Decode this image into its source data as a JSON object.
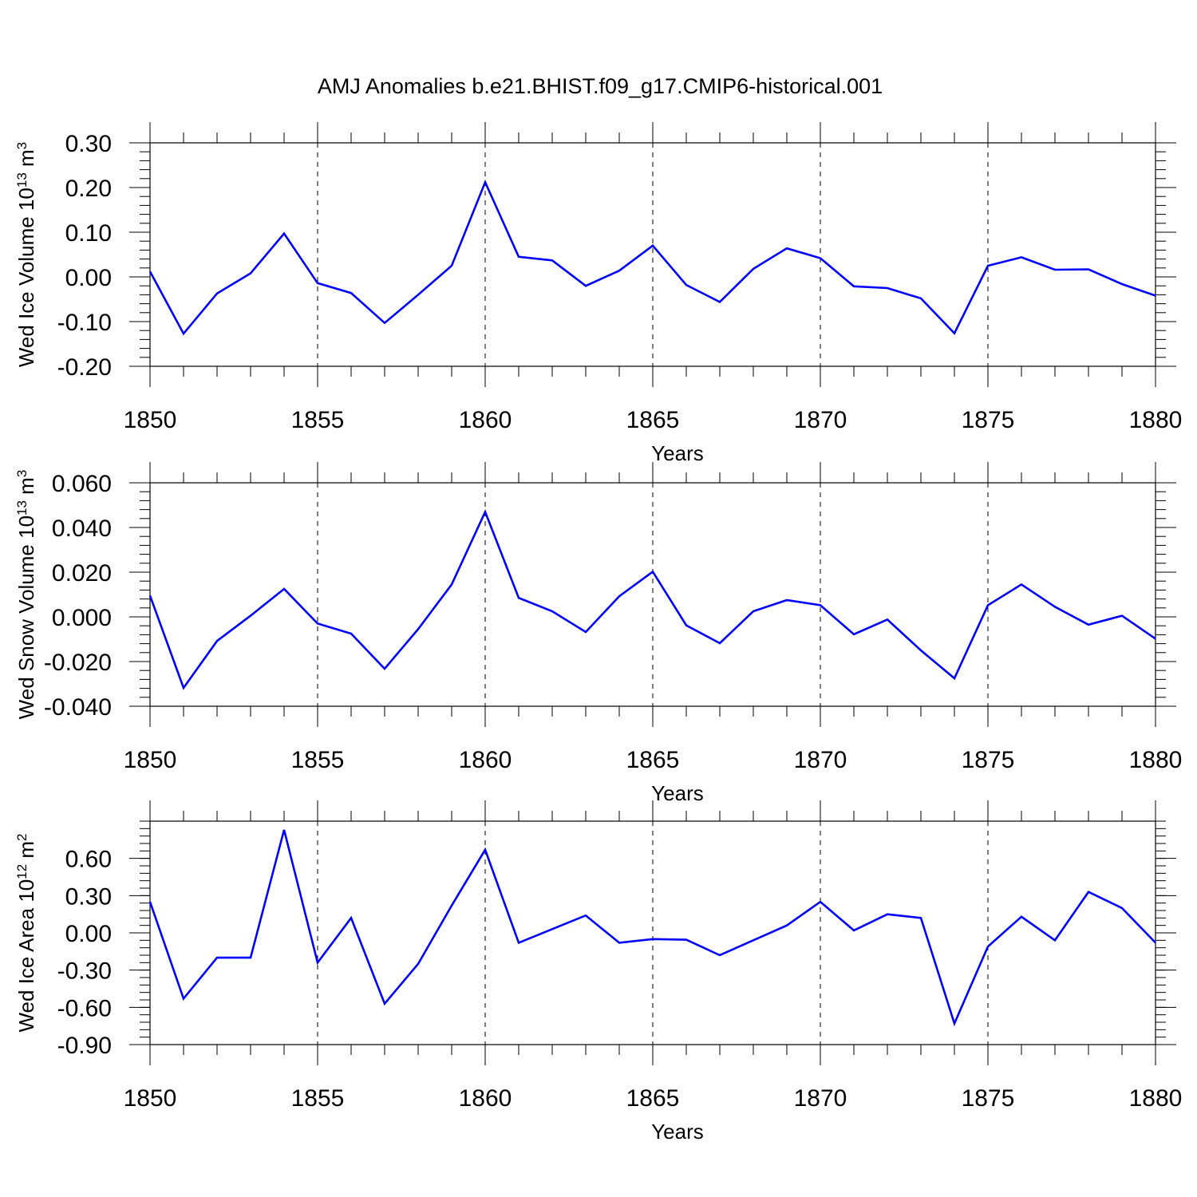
{
  "title": "AMJ Anomalies b.e21.BHIST.f09_g17.CMIP6-historical.001",
  "colors": {
    "series": "#0000ff",
    "axis": "#000000",
    "grid": "#000000"
  },
  "chart_data": [
    {
      "type": "line",
      "xlabel": "Years",
      "ylabel": {
        "text": "Wed Ice Volume 10",
        "exp": "13",
        "unit": " m",
        "unit_exp": "3"
      },
      "xlim": [
        1850,
        1880
      ],
      "ylim": [
        -0.2,
        0.3
      ],
      "x_ticks": [
        "1850",
        "1855",
        "1860",
        "1865",
        "1870",
        "1875",
        "1880"
      ],
      "y_ticks": [
        {
          "v": 0.3,
          "label": "0.30"
        },
        {
          "v": 0.2,
          "label": "0.20"
        },
        {
          "v": 0.1,
          "label": "0.10"
        },
        {
          "v": 0.0,
          "label": "0.00"
        },
        {
          "v": -0.1,
          "label": "-0.10"
        },
        {
          "v": -0.2,
          "label": "-0.20"
        }
      ],
      "y_minor_step": 0.02,
      "grid": "vertical dashed at major x ticks",
      "x": [
        1850,
        1851,
        1852,
        1853,
        1854,
        1855,
        1856,
        1857,
        1858,
        1859,
        1860,
        1861,
        1862,
        1863,
        1864,
        1865,
        1866,
        1867,
        1868,
        1869,
        1870,
        1871,
        1872,
        1873,
        1874,
        1875,
        1876,
        1877,
        1878,
        1879,
        1880
      ],
      "values": [
        0.012,
        -0.127,
        -0.037,
        0.008,
        0.097,
        -0.014,
        -0.036,
        -0.103,
        -0.04,
        0.025,
        0.212,
        0.045,
        0.037,
        -0.02,
        0.014,
        0.07,
        -0.018,
        -0.056,
        0.018,
        0.064,
        0.042,
        -0.021,
        -0.025,
        -0.048,
        -0.126,
        0.025,
        0.044,
        0.016,
        0.017,
        -0.016,
        -0.042
      ]
    },
    {
      "type": "line",
      "xlabel": "Years",
      "ylabel": {
        "text": "Wed Snow Volume 10",
        "exp": "13",
        "unit": " m",
        "unit_exp": "3"
      },
      "xlim": [
        1850,
        1880
      ],
      "ylim": [
        -0.04,
        0.06
      ],
      "x_ticks": [
        "1850",
        "1855",
        "1860",
        "1865",
        "1870",
        "1875",
        "1880"
      ],
      "y_ticks": [
        {
          "v": 0.06,
          "label": "0.060"
        },
        {
          "v": 0.04,
          "label": "0.040"
        },
        {
          "v": 0.02,
          "label": "0.020"
        },
        {
          "v": 0.0,
          "label": "0.000"
        },
        {
          "v": -0.02,
          "label": "-0.020"
        },
        {
          "v": -0.04,
          "label": "-0.040"
        }
      ],
      "y_minor_step": 0.004,
      "grid": "vertical dashed at major x ticks",
      "x": [
        1850,
        1851,
        1852,
        1853,
        1854,
        1855,
        1856,
        1857,
        1858,
        1859,
        1860,
        1861,
        1862,
        1863,
        1864,
        1865,
        1866,
        1867,
        1868,
        1869,
        1870,
        1871,
        1872,
        1873,
        1874,
        1875,
        1876,
        1877,
        1878,
        1879,
        1880
      ],
      "values": [
        0.0095,
        -0.0318,
        -0.0108,
        0.0005,
        0.0125,
        -0.003,
        -0.0075,
        -0.0232,
        -0.0055,
        0.0145,
        0.047,
        0.0085,
        0.0025,
        -0.0068,
        0.0092,
        0.0202,
        -0.0038,
        -0.0118,
        0.0025,
        0.0075,
        0.0052,
        -0.0078,
        -0.0012,
        -0.015,
        -0.0275,
        0.0052,
        0.0145,
        0.0045,
        -0.0035,
        0.0005,
        -0.0098
      ]
    },
    {
      "type": "line",
      "xlabel": "Years",
      "ylabel": {
        "text": "Wed Ice Area 10",
        "exp": "12",
        "unit": " m",
        "unit_exp": "2"
      },
      "xlim": [
        1850,
        1880
      ],
      "ylim": [
        -0.9,
        0.9
      ],
      "x_ticks": [
        "1850",
        "1855",
        "1860",
        "1865",
        "1870",
        "1875",
        "1880"
      ],
      "y_ticks": [
        {
          "v": 0.6,
          "label": "0.60"
        },
        {
          "v": 0.3,
          "label": "0.30"
        },
        {
          "v": 0.0,
          "label": "0.00"
        },
        {
          "v": -0.3,
          "label": "-0.30"
        },
        {
          "v": -0.6,
          "label": "-0.60"
        },
        {
          "v": -0.9,
          "label": "-0.90"
        }
      ],
      "y_minor_step": 0.06,
      "grid": "vertical dashed at major x ticks",
      "x": [
        1850,
        1851,
        1852,
        1853,
        1854,
        1855,
        1856,
        1857,
        1858,
        1859,
        1860,
        1861,
        1862,
        1863,
        1864,
        1865,
        1866,
        1867,
        1868,
        1869,
        1870,
        1871,
        1872,
        1873,
        1874,
        1875,
        1876,
        1877,
        1878,
        1879,
        1880
      ],
      "values": [
        0.25,
        -0.53,
        -0.2,
        -0.2,
        0.83,
        -0.24,
        0.12,
        -0.57,
        -0.25,
        0.22,
        0.67,
        -0.08,
        0.03,
        0.14,
        -0.08,
        -0.05,
        -0.055,
        -0.18,
        -0.06,
        0.06,
        0.25,
        0.02,
        0.15,
        0.12,
        -0.73,
        -0.11,
        0.13,
        -0.06,
        0.33,
        0.2,
        -0.08
      ]
    }
  ]
}
